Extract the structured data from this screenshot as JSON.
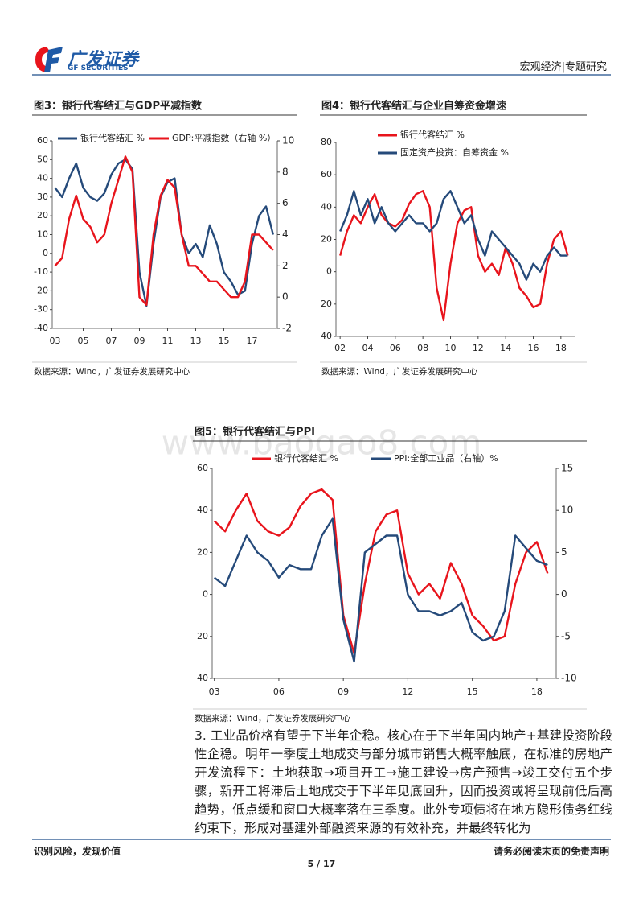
{
  "header": {
    "brand": "广发证券",
    "brand_en": "GF SECURITIES",
    "section": "宏观经济|专题研究"
  },
  "watermark": "www.baogao8.com",
  "chart_data": [
    {
      "type": "line",
      "title": "图3：银行代客结汇与GDP平减指数",
      "source": "数据来源：Wind，广发证券发展研究中心",
      "x": [
        3,
        3.5,
        4,
        4.5,
        5,
        5.5,
        6,
        6.5,
        7,
        7.5,
        8,
        8.5,
        9,
        9.5,
        10,
        10.5,
        11,
        11.5,
        12,
        12.5,
        13,
        13.5,
        14,
        14.5,
        15,
        15.5,
        16,
        16.5,
        17,
        17.5,
        18,
        18.5
      ],
      "xlim": [
        2.8,
        18.8
      ],
      "xticks": [
        {
          "value": 3,
          "label": "03"
        },
        {
          "value": 5,
          "label": "05"
        },
        {
          "value": 7,
          "label": "07"
        },
        {
          "value": 9,
          "label": "09"
        },
        11,
        13,
        15,
        17
      ],
      "ylim": [
        -40,
        60
      ],
      "yticks": [
        60,
        50,
        40,
        30,
        20,
        10,
        0,
        -10,
        -20,
        -30,
        -40
      ],
      "y2lim": [
        -2,
        10
      ],
      "y2ticks": [
        10,
        8,
        6,
        4,
        2,
        0,
        -2
      ],
      "series": [
        {
          "name": "银行代客结汇 %",
          "color": "#254a7a",
          "values": [
            35,
            30,
            40,
            48,
            35,
            30,
            28,
            32,
            42,
            48,
            50,
            45,
            -10,
            -28,
            5,
            30,
            38,
            40,
            10,
            0,
            5,
            -2,
            15,
            5,
            -10,
            -15,
            -22,
            -20,
            5,
            20,
            25,
            10
          ]
        },
        {
          "name": "GDP:平减指数（右轴 %）",
          "color": "#e8141c",
          "axis": "y2",
          "values": [
            2,
            2.5,
            5,
            6.5,
            5,
            4.5,
            3.5,
            4,
            6,
            7.5,
            9,
            8,
            0,
            -0.5,
            4,
            6.5,
            7.5,
            7,
            4,
            2,
            2,
            1.5,
            1,
            1,
            0.5,
            0,
            0,
            1,
            4,
            4,
            3.5,
            3
          ]
        }
      ]
    },
    {
      "type": "line",
      "title": "图4：银行代客结汇与企业自筹资金增速",
      "source": "数据来源：Wind，广发证券发展研究中心",
      "x": [
        2,
        2.5,
        3,
        3.5,
        4,
        4.5,
        5,
        5.5,
        6,
        6.5,
        7,
        7.5,
        8,
        8.5,
        9,
        9.5,
        10,
        10.5,
        11,
        11.5,
        12,
        12.5,
        13,
        13.5,
        14,
        14.5,
        15,
        15.5,
        16,
        16.5,
        17,
        17.5,
        18,
        18.5
      ],
      "xlim": [
        1.7,
        19
      ],
      "xticks": [
        {
          "value": 2,
          "label": "02"
        },
        {
          "value": 4,
          "label": "04"
        },
        {
          "value": 6,
          "label": "06"
        },
        {
          "value": 8,
          "label": "08"
        },
        10,
        12,
        14,
        16,
        18
      ],
      "ylim": [
        -40,
        80
      ],
      "yticks": [
        80,
        60,
        40,
        20,
        0,
        {
          "value": -20,
          "label": "20"
        },
        {
          "value": -40,
          "label": "40"
        }
      ],
      "series": [
        {
          "name": "银行代客结汇 %",
          "color": "#e8141c",
          "values": [
            10,
            25,
            35,
            30,
            40,
            48,
            35,
            30,
            28,
            32,
            42,
            48,
            50,
            40,
            -10,
            -30,
            5,
            30,
            38,
            40,
            10,
            0,
            5,
            -2,
            15,
            5,
            -10,
            -15,
            -22,
            -20,
            5,
            20,
            25,
            10
          ]
        },
        {
          "name": "固定资产投资：自筹资金 %",
          "color": "#254a7a",
          "values": [
            25,
            35,
            50,
            35,
            45,
            30,
            40,
            30,
            25,
            30,
            35,
            30,
            30,
            25,
            30,
            45,
            50,
            40,
            30,
            35,
            20,
            10,
            25,
            20,
            15,
            10,
            5,
            -5,
            5,
            0,
            10,
            15,
            10,
            10
          ]
        }
      ]
    },
    {
      "type": "line",
      "title": "图5：银行代客结汇与PPI",
      "source": "数据来源：Wind，广发证券发展研究中心",
      "x": [
        3,
        3.5,
        4,
        4.5,
        5,
        5.5,
        6,
        6.5,
        7,
        7.5,
        8,
        8.5,
        9,
        9.5,
        10,
        10.5,
        11,
        11.5,
        12,
        12.5,
        13,
        13.5,
        14,
        14.5,
        15,
        15.5,
        16,
        16.5,
        17,
        17.5,
        18,
        18.5
      ],
      "xlim": [
        2.9,
        18.9
      ],
      "xticks": [
        {
          "value": 3,
          "label": "03"
        },
        {
          "value": 6,
          "label": "06"
        },
        {
          "value": 9,
          "label": "09"
        },
        12,
        15,
        18
      ],
      "ylim": [
        -40,
        60
      ],
      "yticks": [
        60,
        40,
        20,
        0,
        {
          "value": -20,
          "label": "20"
        },
        {
          "value": -40,
          "label": "40"
        }
      ],
      "y2lim": [
        -10,
        15
      ],
      "y2ticks": [
        15,
        10,
        5,
        0,
        -5,
        -10
      ],
      "series": [
        {
          "name": "银行代客结汇 %",
          "color": "#e8141c",
          "values": [
            35,
            30,
            40,
            48,
            35,
            30,
            28,
            32,
            42,
            48,
            50,
            45,
            -10,
            -28,
            5,
            30,
            38,
            40,
            10,
            0,
            5,
            -2,
            15,
            5,
            -10,
            -15,
            -22,
            -20,
            5,
            20,
            25,
            10
          ]
        },
        {
          "name": "PPI:全部工业品（右轴）%",
          "color": "#254a7a",
          "axis": "y2",
          "values": [
            2,
            1,
            4,
            7,
            5,
            4,
            2,
            3.5,
            3,
            3,
            7,
            9,
            -3,
            -8,
            5,
            6,
            7,
            7,
            0,
            -2,
            -2,
            -2.5,
            -2,
            -1,
            -4.5,
            -5.5,
            -5,
            -2,
            7,
            5.5,
            4,
            3.5
          ]
        }
      ]
    }
  ],
  "body": {
    "paragraph": "3. 工业品价格有望于下半年企稳。核心在于下半年国内地产+基建投资阶段性企稳。明年一季度土地成交与部分城市销售大概率触底，在标准的房地产开发流程下：土地获取→项目开工→施工建设→房产预售→竣工交付五个步骤，新开工将滞后土地成交于下半年见底回升，因而投资或将呈现前低后高趋势，低点缓和窗口大概率落在三季度。此外专项债将在地方隐形债务红线约束下，形成对基建外部融资来源的有效补充，并最终转化为"
  },
  "footer": {
    "left": "识别风险，发现价值",
    "right": "请务必阅读末页的免责声明",
    "page": "5 / 17"
  }
}
